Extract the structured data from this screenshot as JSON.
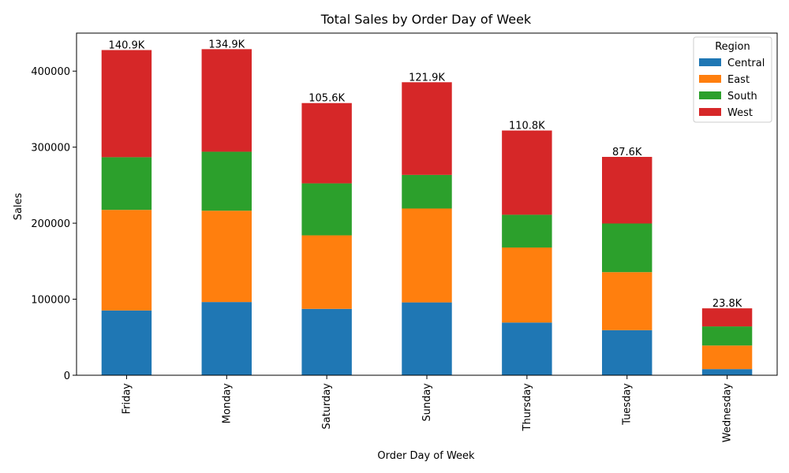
{
  "chart_data": {
    "type": "bar",
    "stacked": true,
    "title": "Total Sales by Order Day of Week",
    "xlabel": "Order Day of Week",
    "ylabel": "Sales",
    "ylim": [
      0,
      450000
    ],
    "yticks": [
      0,
      100000,
      200000,
      300000,
      400000
    ],
    "categories": [
      "Friday",
      "Monday",
      "Saturday",
      "Sunday",
      "Thursday",
      "Tuesday",
      "Wednesday"
    ],
    "legend": {
      "title": "Region",
      "placement": "top-right"
    },
    "series": [
      {
        "name": "Central",
        "color": "#1f77b4",
        "values": [
          85200,
          96300,
          87300,
          95800,
          69300,
          59300,
          8100
        ],
        "labels": [
          "85.2K",
          "96.3K",
          "87.3K",
          "95.8K",
          "69.3K",
          "59.3K",
          "8.1K"
        ]
      },
      {
        "name": "East",
        "color": "#ff7f0e",
        "values": [
          132300,
          120100,
          96700,
          123500,
          98700,
          76300,
          31000
        ],
        "labels": [
          "132.3K",
          "120.1K",
          "96.7K",
          "123.5K",
          "98.7K",
          "76.3K",
          "31.0K"
        ]
      },
      {
        "name": "South",
        "color": "#2ca02c",
        "values": [
          69300,
          77600,
          68400,
          44200,
          43100,
          64000,
          25100
        ],
        "labels": [
          "69.3K",
          "77.6K",
          "68.4K",
          "44.2K",
          "43.1K",
          "64.0K",
          "25.1K"
        ]
      },
      {
        "name": "West",
        "color": "#d62728",
        "values": [
          140900,
          134900,
          105600,
          121900,
          110800,
          87600,
          23800
        ],
        "labels": [
          "140.9K",
          "134.9K",
          "105.6K",
          "121.9K",
          "110.8K",
          "87.6K",
          "23.8K"
        ]
      }
    ],
    "grid": false
  }
}
